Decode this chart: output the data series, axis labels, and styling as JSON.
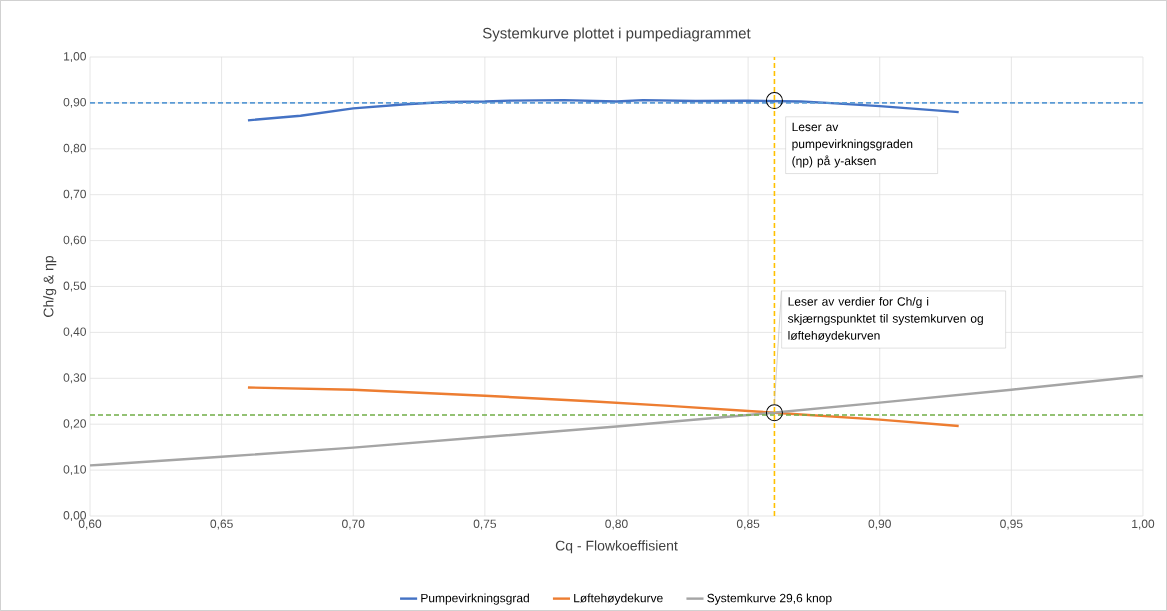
{
  "chart_data": {
    "type": "line",
    "title": "Systemkurve plottet i pumpediagrammet",
    "xlabel": "Cq - Flowkoeffisient",
    "ylabel": "Ch/g & ηp",
    "series": [
      {
        "name": "Pumpevirkningsgrad",
        "color": "#4472c4",
        "x": [
          0.66,
          0.68,
          0.7,
          0.72,
          0.735,
          0.75,
          0.76,
          0.78,
          0.8,
          0.81,
          0.83,
          0.85,
          0.86,
          0.87,
          0.88,
          0.9,
          0.93
        ],
        "values": [
          0.862,
          0.872,
          0.888,
          0.897,
          0.902,
          0.903,
          0.905,
          0.906,
          0.903,
          0.906,
          0.904,
          0.905,
          0.904,
          0.903,
          0.9,
          0.893,
          0.88
        ]
      },
      {
        "name": "Løftehøydekurve",
        "color": "#ed7d31",
        "x": [
          0.66,
          0.7,
          0.75,
          0.79,
          0.82,
          0.86,
          0.9,
          0.93
        ],
        "values": [
          0.28,
          0.275,
          0.262,
          0.25,
          0.24,
          0.225,
          0.21,
          0.196
        ]
      },
      {
        "name": "Systemkurve 29,6 knop",
        "color": "#a5a5a5",
        "x": [
          0.6,
          0.65,
          0.7,
          0.75,
          0.8,
          0.85,
          0.9,
          0.95,
          1.0
        ],
        "values": [
          0.11,
          0.129,
          0.149,
          0.172,
          0.195,
          0.22,
          0.247,
          0.275,
          0.305
        ]
      }
    ],
    "xlim": [
      0.6,
      1.0
    ],
    "ylim": [
      0,
      1.0
    ],
    "xticks": [
      {
        "value": 0.6,
        "label": "0,60"
      },
      {
        "value": 0.65,
        "label": "0,65"
      },
      {
        "value": 0.7,
        "label": "0,70"
      },
      {
        "value": 0.75,
        "label": "0,75"
      },
      {
        "value": 0.8,
        "label": "0,80"
      },
      {
        "value": 0.85,
        "label": "0,85"
      },
      {
        "value": 0.9,
        "label": "0,90"
      },
      {
        "value": 0.95,
        "label": "0,95"
      },
      {
        "value": 1.0,
        "label": "1,00"
      }
    ],
    "yticks": [
      {
        "value": 0,
        "label": "0,00"
      },
      {
        "value": 0.1,
        "label": "0,10"
      },
      {
        "value": 0.2,
        "label": "0,20"
      },
      {
        "value": 0.3,
        "label": "0,30"
      },
      {
        "value": 0.4,
        "label": "0,40"
      },
      {
        "value": 0.5,
        "label": "0,50"
      },
      {
        "value": 0.6,
        "label": "0,60"
      },
      {
        "value": 0.7,
        "label": "0,70"
      },
      {
        "value": 0.8,
        "label": "0,80"
      },
      {
        "value": 0.9,
        "label": "0,90"
      },
      {
        "value": 1.0,
        "label": "1,00"
      }
    ],
    "ref_lines": [
      {
        "axis": "y",
        "value": 0.9,
        "color": "#5b9bd5",
        "line_style": "dashed"
      },
      {
        "axis": "y",
        "value": 0.22,
        "color": "#70ad47",
        "line_style": "dashed"
      },
      {
        "axis": "x",
        "value": 0.86,
        "color": "#ffc000",
        "line_style": "dashed"
      }
    ],
    "annotations": [
      {
        "text": "Leser av pumpevirkningsgraden (ηp) på y-aksen",
        "x": 0.86,
        "y": 0.905
      },
      {
        "text": "Leser av verdier for Ch/g i skjærngspunktet til systemkurven og løftehøydekurven",
        "x": 0.86,
        "y": 0.225
      }
    ],
    "grid": true,
    "legend": "bottom",
    "marker": "none",
    "line_style": "solid"
  }
}
